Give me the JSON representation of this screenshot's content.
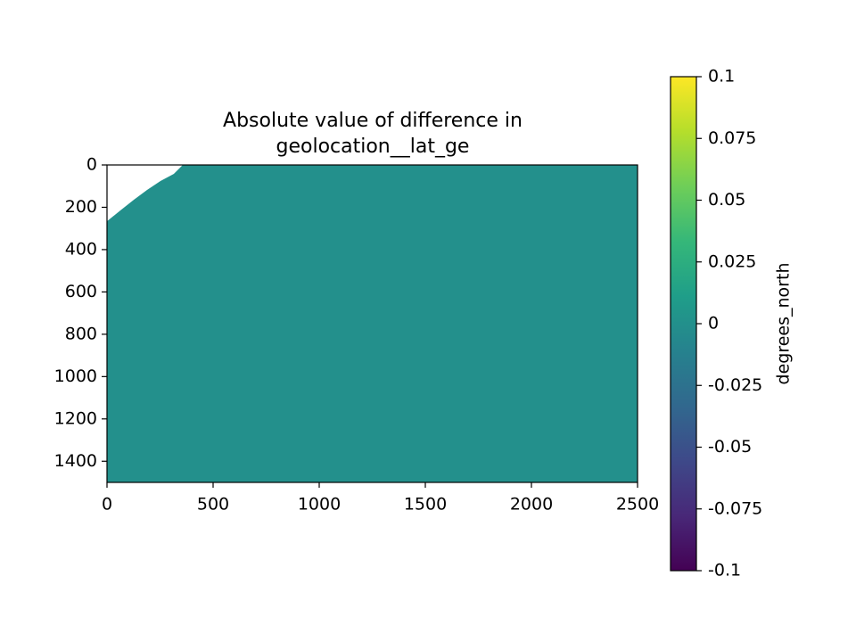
{
  "chart_data": {
    "type": "heatmap",
    "title": [
      "Absolute value of difference in",
      "geolocation__lat_ge"
    ],
    "z": 0,
    "mask_edge": {
      "x": [
        0,
        63,
        126,
        189,
        252,
        315,
        357
      ],
      "y": [
        266,
        215,
        165,
        118,
        76,
        42,
        0
      ]
    },
    "xlim": [
      0,
      2500
    ],
    "xticks": [
      0,
      500,
      1000,
      1500,
      2000,
      2500
    ],
    "ylim": [
      0,
      1500
    ],
    "y_inverted": true,
    "yticks": [
      0,
      200,
      400,
      600,
      800,
      1000,
      1200,
      1400
    ],
    "colorbar": {
      "label": "degrees_north",
      "lim": [
        -0.1,
        0.1
      ],
      "ticks": [
        0.1,
        0.075,
        0.05,
        0.025,
        0,
        -0.025,
        -0.05,
        -0.075,
        -0.1
      ],
      "colormap": [
        "#440154",
        "#482878",
        "#3e4989",
        "#31688e",
        "#26828e",
        "#1f9e89",
        "#35b779",
        "#6ece58",
        "#b5de2b",
        "#fde725"
      ]
    }
  }
}
